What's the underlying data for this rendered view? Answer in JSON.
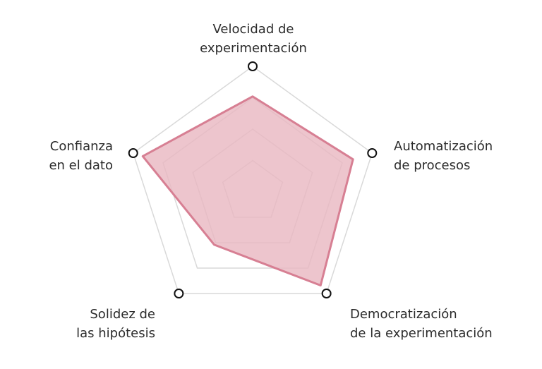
{
  "chart_data": {
    "type": "radar",
    "axes": [
      {
        "line1": "Velocidad de",
        "line2": "experimentación"
      },
      {
        "line1": "Automatización",
        "line2": "de procesos"
      },
      {
        "line1": "Democratización",
        "line2": "de la experimentación"
      },
      {
        "line1": "Solidez de",
        "line2": "las hipótesis"
      },
      {
        "line1": "Confianza",
        "line2": "en el dato"
      }
    ],
    "levels": 4,
    "max": 1,
    "values": [
      0.76,
      0.84,
      0.92,
      0.52,
      0.92
    ],
    "grid": true,
    "colors": {
      "fill": "#e8b6c1",
      "stroke": "#d77f93",
      "grid": "#d9d9d9",
      "axis_marker": "#111111"
    }
  }
}
